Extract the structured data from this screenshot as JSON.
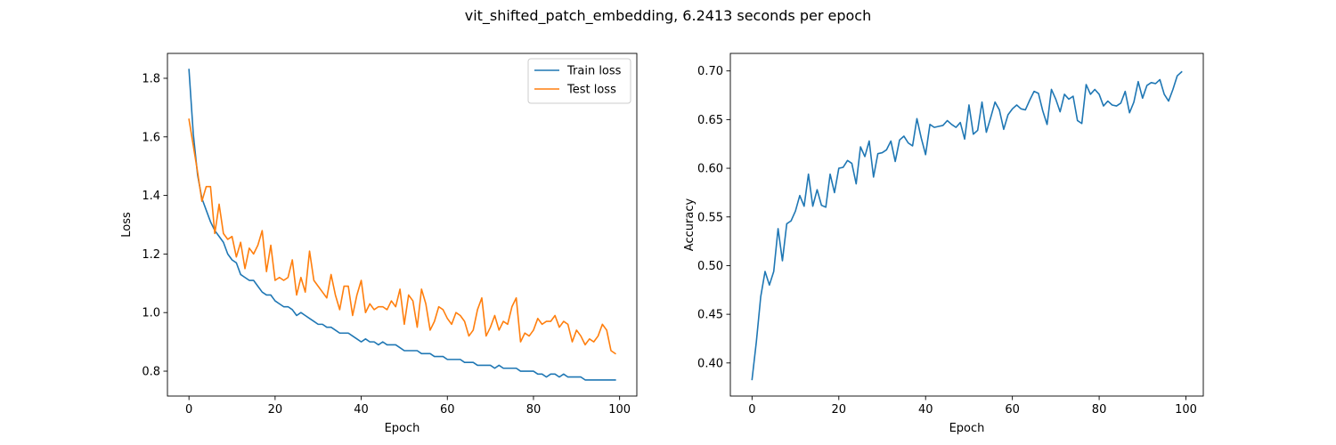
{
  "figure": {
    "suptitle": "vit_shifted_patch_embedding, 6.2413 seconds per epoch"
  },
  "colors": {
    "train": "#1f77b4",
    "test": "#ff7f0e",
    "legend_border": "#cccccc"
  },
  "chart_data": [
    {
      "type": "line",
      "title": "",
      "xlabel": "Epoch",
      "ylabel": "Loss",
      "xlim": [
        -5,
        104
      ],
      "ylim": [
        0.715,
        1.885
      ],
      "xticks": [
        0,
        20,
        40,
        60,
        80,
        100
      ],
      "yticks": [
        0.8,
        1.0,
        1.2,
        1.4,
        1.6,
        1.8
      ],
      "ytick_labels": [
        "0.8",
        "1.0",
        "1.2",
        "1.4",
        "1.6",
        "1.8"
      ],
      "legend": "upper-right",
      "grid": false,
      "series": [
        {
          "name": "Train loss",
          "color_key": "train",
          "values": [
            1.83,
            1.61,
            1.47,
            1.39,
            1.35,
            1.31,
            1.28,
            1.26,
            1.24,
            1.2,
            1.18,
            1.17,
            1.13,
            1.12,
            1.11,
            1.11,
            1.09,
            1.07,
            1.06,
            1.06,
            1.04,
            1.03,
            1.02,
            1.02,
            1.01,
            0.99,
            1.0,
            0.99,
            0.98,
            0.97,
            0.96,
            0.96,
            0.95,
            0.95,
            0.94,
            0.93,
            0.93,
            0.93,
            0.92,
            0.91,
            0.9,
            0.91,
            0.9,
            0.9,
            0.89,
            0.9,
            0.89,
            0.89,
            0.89,
            0.88,
            0.87,
            0.87,
            0.87,
            0.87,
            0.86,
            0.86,
            0.86,
            0.85,
            0.85,
            0.85,
            0.84,
            0.84,
            0.84,
            0.84,
            0.83,
            0.83,
            0.83,
            0.82,
            0.82,
            0.82,
            0.82,
            0.81,
            0.82,
            0.81,
            0.81,
            0.81,
            0.81,
            0.8,
            0.8,
            0.8,
            0.8,
            0.79,
            0.79,
            0.78,
            0.79,
            0.79,
            0.78,
            0.79,
            0.78,
            0.78,
            0.78,
            0.78,
            0.77,
            0.77,
            0.77,
            0.77,
            0.77,
            0.77,
            0.77,
            0.77
          ]
        },
        {
          "name": "Test loss",
          "color_key": "test",
          "values": [
            1.66,
            1.57,
            1.48,
            1.38,
            1.43,
            1.43,
            1.27,
            1.37,
            1.27,
            1.25,
            1.26,
            1.19,
            1.24,
            1.15,
            1.22,
            1.2,
            1.23,
            1.28,
            1.14,
            1.23,
            1.11,
            1.12,
            1.11,
            1.12,
            1.18,
            1.06,
            1.12,
            1.07,
            1.21,
            1.11,
            1.09,
            1.07,
            1.05,
            1.13,
            1.06,
            1.01,
            1.09,
            1.09,
            0.99,
            1.06,
            1.11,
            1.0,
            1.03,
            1.01,
            1.02,
            1.02,
            1.01,
            1.04,
            1.02,
            1.08,
            0.96,
            1.06,
            1.04,
            0.95,
            1.08,
            1.03,
            0.94,
            0.97,
            1.02,
            1.01,
            0.98,
            0.96,
            1.0,
            0.99,
            0.97,
            0.92,
            0.94,
            1.01,
            1.05,
            0.92,
            0.95,
            0.99,
            0.94,
            0.97,
            0.96,
            1.02,
            1.05,
            0.9,
            0.93,
            0.92,
            0.94,
            0.98,
            0.96,
            0.97,
            0.97,
            0.99,
            0.95,
            0.97,
            0.96,
            0.9,
            0.94,
            0.92,
            0.89,
            0.91,
            0.9,
            0.92,
            0.96,
            0.94,
            0.87,
            0.86
          ]
        }
      ]
    },
    {
      "type": "line",
      "title": "",
      "xlabel": "Epoch",
      "ylabel": "Accuracy",
      "xlim": [
        -5,
        104
      ],
      "ylim": [
        0.366,
        0.718
      ],
      "xticks": [
        0,
        20,
        40,
        60,
        80,
        100
      ],
      "yticks": [
        0.4,
        0.45,
        0.5,
        0.55,
        0.6,
        0.65,
        0.7
      ],
      "ytick_labels": [
        "0.40",
        "0.45",
        "0.50",
        "0.55",
        "0.60",
        "0.65",
        "0.70"
      ],
      "grid": false,
      "series": [
        {
          "color_key": "train",
          "values": [
            0.383,
            0.422,
            0.468,
            0.494,
            0.48,
            0.494,
            0.538,
            0.505,
            0.543,
            0.546,
            0.556,
            0.572,
            0.561,
            0.594,
            0.561,
            0.578,
            0.562,
            0.56,
            0.594,
            0.575,
            0.6,
            0.601,
            0.608,
            0.605,
            0.584,
            0.622,
            0.612,
            0.628,
            0.591,
            0.615,
            0.616,
            0.619,
            0.628,
            0.607,
            0.629,
            0.633,
            0.626,
            0.623,
            0.651,
            0.631,
            0.614,
            0.645,
            0.642,
            0.643,
            0.644,
            0.649,
            0.645,
            0.642,
            0.647,
            0.63,
            0.665,
            0.635,
            0.639,
            0.668,
            0.637,
            0.652,
            0.668,
            0.66,
            0.64,
            0.655,
            0.661,
            0.665,
            0.661,
            0.66,
            0.67,
            0.679,
            0.677,
            0.659,
            0.645,
            0.681,
            0.671,
            0.658,
            0.676,
            0.671,
            0.674,
            0.649,
            0.646,
            0.686,
            0.676,
            0.681,
            0.676,
            0.664,
            0.669,
            0.665,
            0.664,
            0.667,
            0.679,
            0.657,
            0.668,
            0.689,
            0.672,
            0.685,
            0.688,
            0.687,
            0.691,
            0.676,
            0.669,
            0.681,
            0.695,
            0.699
          ]
        }
      ]
    }
  ]
}
